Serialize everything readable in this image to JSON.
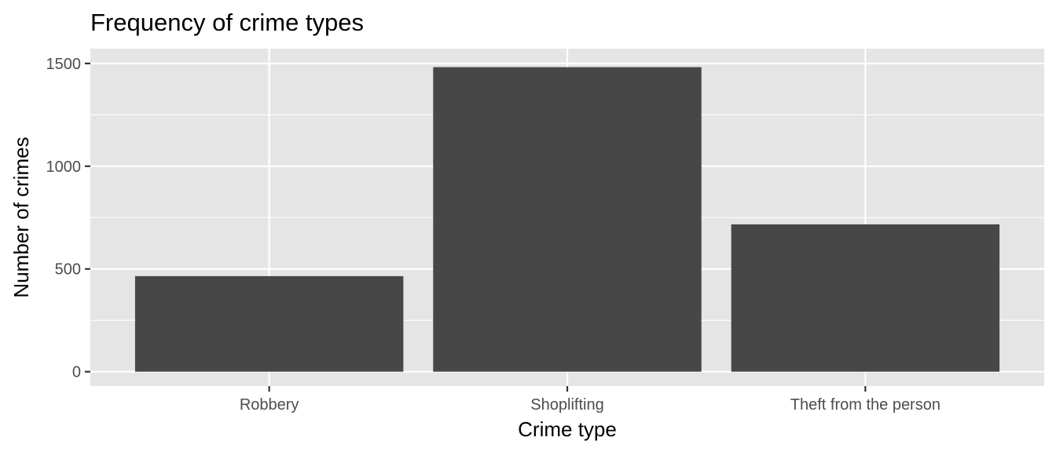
{
  "chart_data": {
    "type": "bar",
    "title": "Frequency of crime types",
    "xlabel": "Crime type",
    "ylabel": "Number of crimes",
    "categories": [
      "Robbery",
      "Shoplifting",
      "Theft from the person"
    ],
    "values": [
      465,
      1482,
      717
    ],
    "ylim": [
      -70,
      1572
    ],
    "yticks": [
      0,
      500,
      1000,
      1500
    ],
    "grid": true,
    "legend": "none",
    "colors": {
      "bar": "#474747",
      "panel": "#e5e5e5",
      "grid": "#ffffff",
      "tick_text": "#4d4d4d",
      "tick_mark": "#333333"
    }
  }
}
